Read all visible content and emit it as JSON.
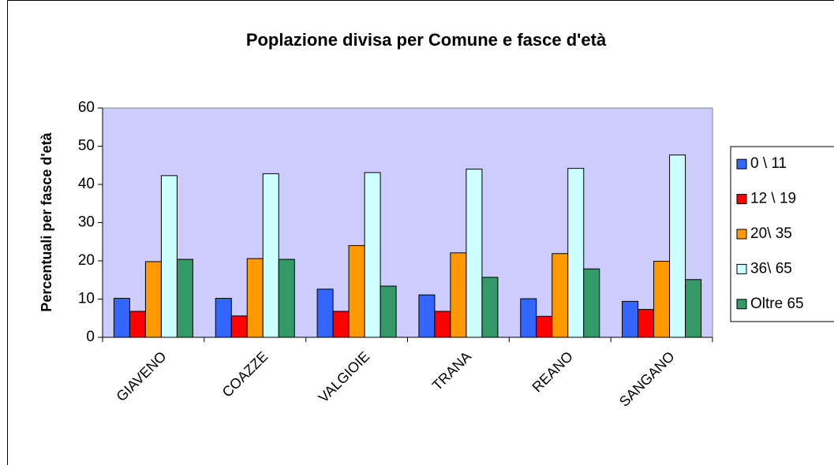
{
  "chart_data": {
    "type": "bar",
    "title": "Poplazione divisa per Comune e fasce d'età",
    "y_label": "Percentuali per fasce d'età",
    "categories": [
      "GIAVENO",
      "COAZZE",
      "VALGIOIE",
      "TRANA",
      "REANO",
      "SANGANO"
    ],
    "series": [
      {
        "name": "0 \\ 11",
        "color": "#3366ff",
        "values": [
          10.2,
          10.2,
          12.6,
          11.1,
          10.1,
          9.4
        ]
      },
      {
        "name": "12 \\ 19",
        "color": "#ff0000",
        "values": [
          6.8,
          5.6,
          6.8,
          6.8,
          5.5,
          7.3
        ]
      },
      {
        "name": "20\\ 35",
        "color": "#ff9900",
        "values": [
          19.8,
          20.6,
          24.0,
          22.1,
          21.9,
          19.9
        ]
      },
      {
        "name": "36\\ 65",
        "color": "#ccffff",
        "values": [
          42.3,
          42.8,
          43.1,
          44.0,
          44.2,
          47.7
        ]
      },
      {
        "name": "Oltre 65",
        "color": "#339966",
        "values": [
          20.4,
          20.4,
          13.4,
          15.7,
          17.9,
          15.1
        ]
      }
    ],
    "ylim": [
      0,
      60
    ],
    "yticks": [
      0,
      10,
      20,
      30,
      40,
      50,
      60
    ],
    "plot_background": "#ccccff",
    "legend": "right"
  }
}
